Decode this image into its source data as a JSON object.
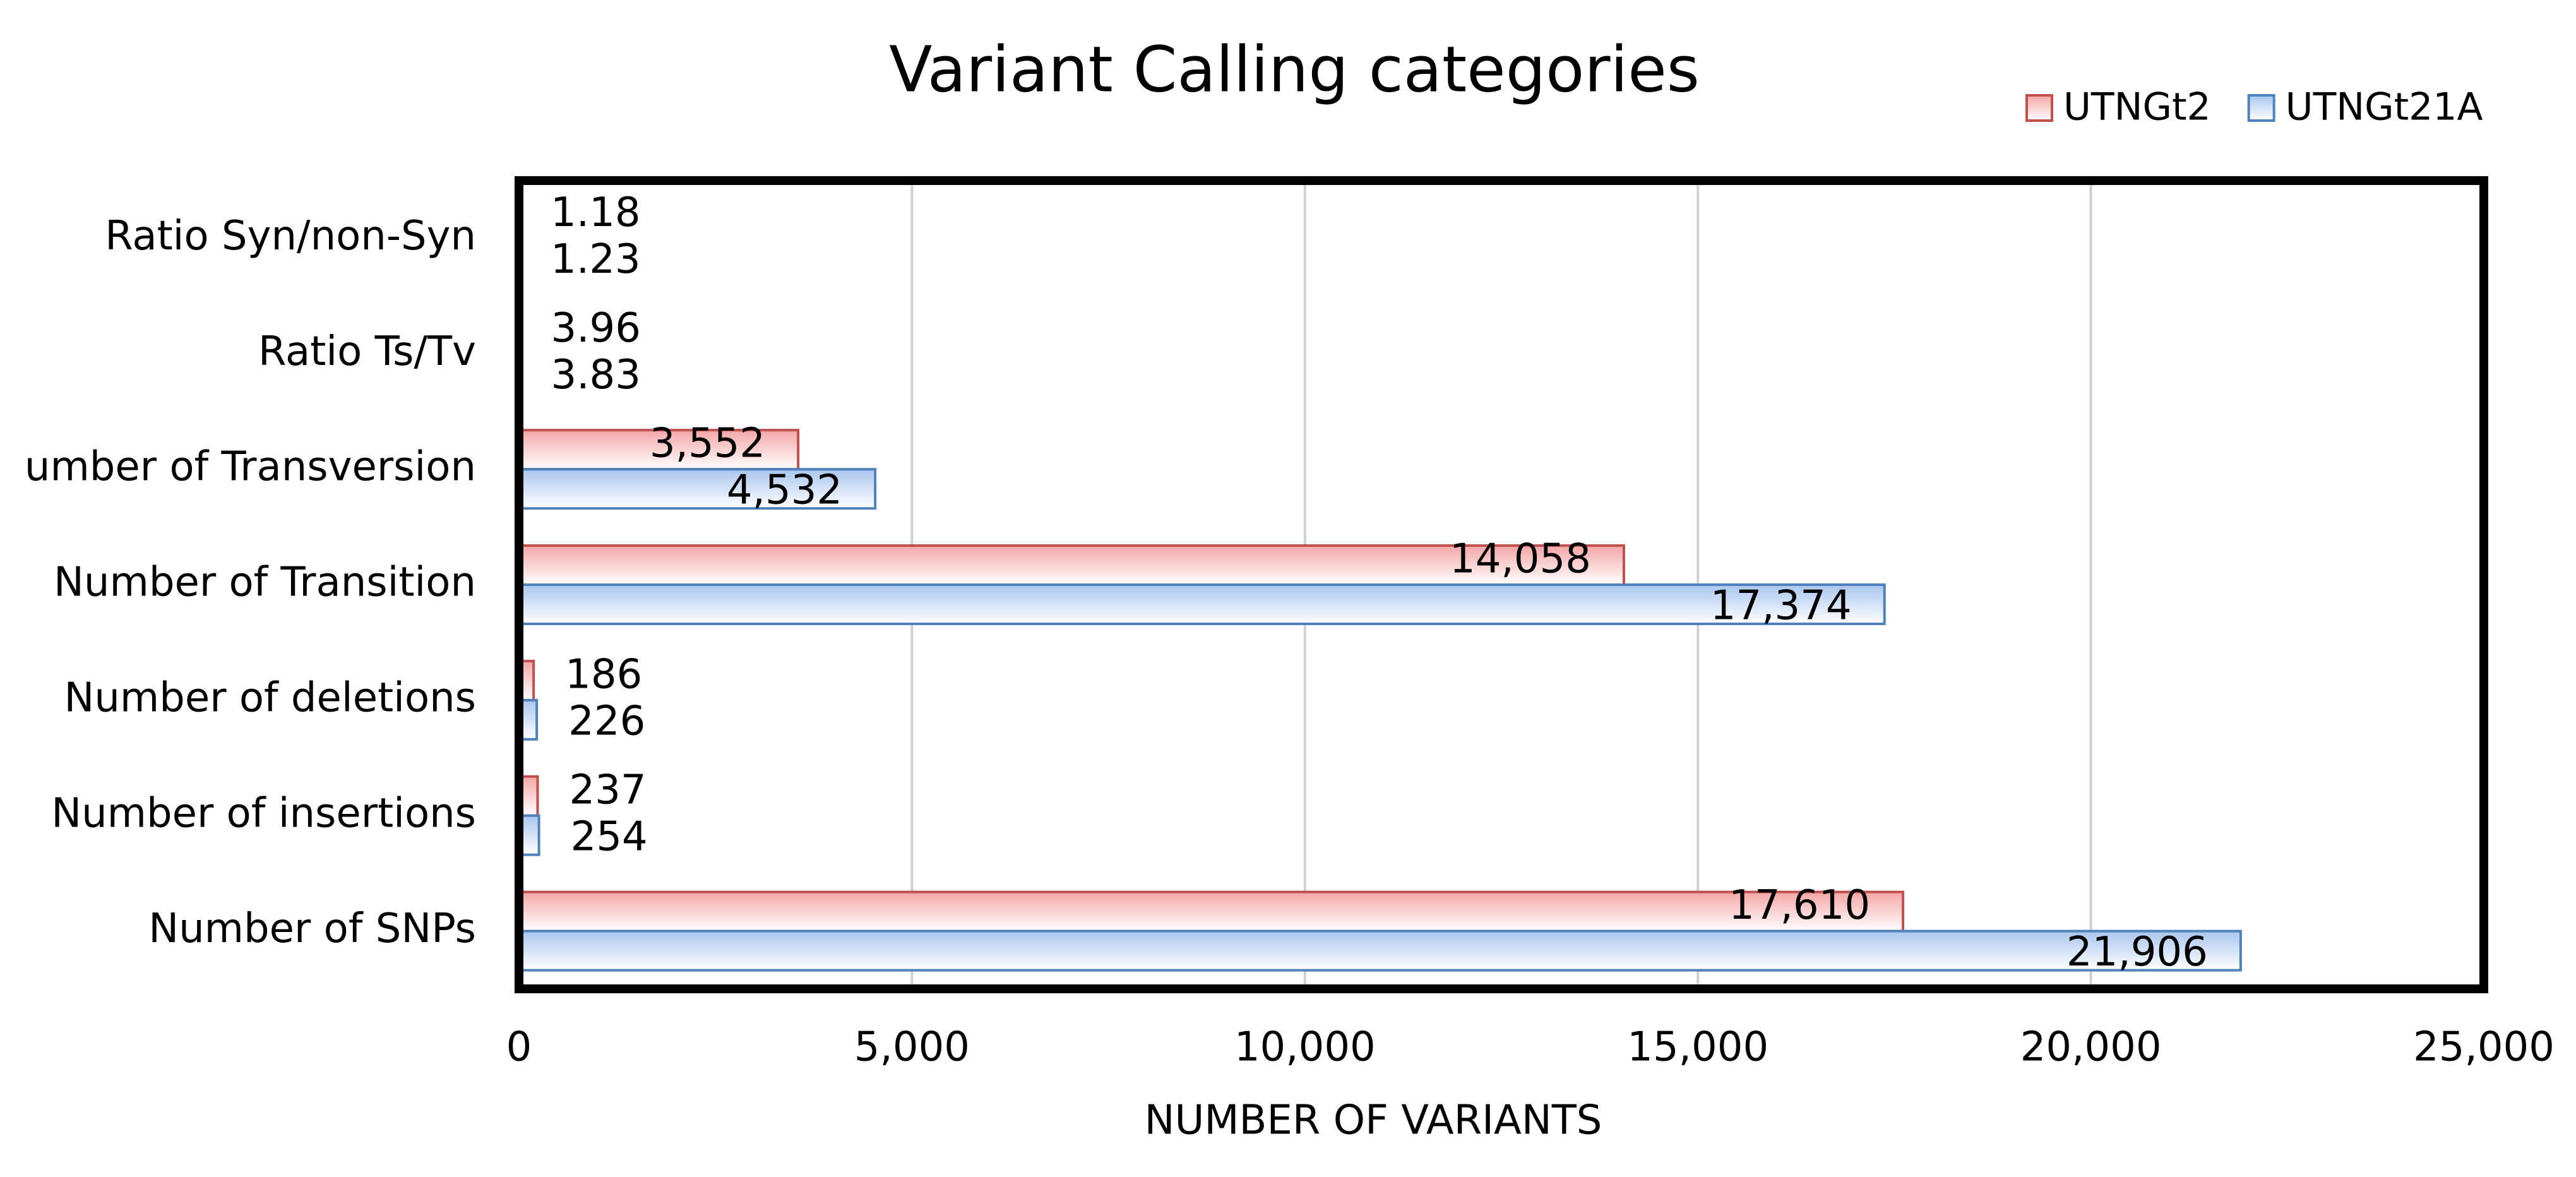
{
  "chart_data": {
    "type": "hbar",
    "title": "Variant Calling categories",
    "x_axis_label": "NUMBER OF VARIANTS",
    "categories": [
      "Ratio Syn/non-Syn",
      "Ratio Ts/Tv",
      "umber of Transversion",
      "Number of Transition",
      "Number of deletions",
      "Number of insertions",
      "Number of SNPs"
    ],
    "series": [
      {
        "name": "UTNGt2",
        "color": "#f4a6a6",
        "edge": "#c0504d",
        "values": [
          1.18,
          3.96,
          3552,
          14058,
          186,
          237,
          17610
        ],
        "value_labels": [
          "1.18",
          "3.96",
          "3,552",
          "14,058",
          "186",
          "237",
          "17,610"
        ]
      },
      {
        "name": "UTNGt21A",
        "color": "#a9c6ee",
        "edge": "#4f81bd",
        "values": [
          1.23,
          3.83,
          4532,
          17374,
          226,
          254,
          21906
        ],
        "value_labels": [
          "1.23",
          "3.83",
          "4,532",
          "17,374",
          "226",
          "254",
          "21,906"
        ]
      }
    ],
    "xlim": [
      0,
      25000
    ],
    "xticks": [
      0,
      {
        "value": 5000,
        "label": "5,000"
      },
      {
        "value": 10000,
        "label": "10,000"
      },
      {
        "value": 15000,
        "label": "15,000"
      },
      {
        "value": 20000,
        "label": "20,000"
      },
      {
        "value": 25000,
        "label": "25,000"
      }
    ],
    "grid": true,
    "legend": "top-right"
  }
}
